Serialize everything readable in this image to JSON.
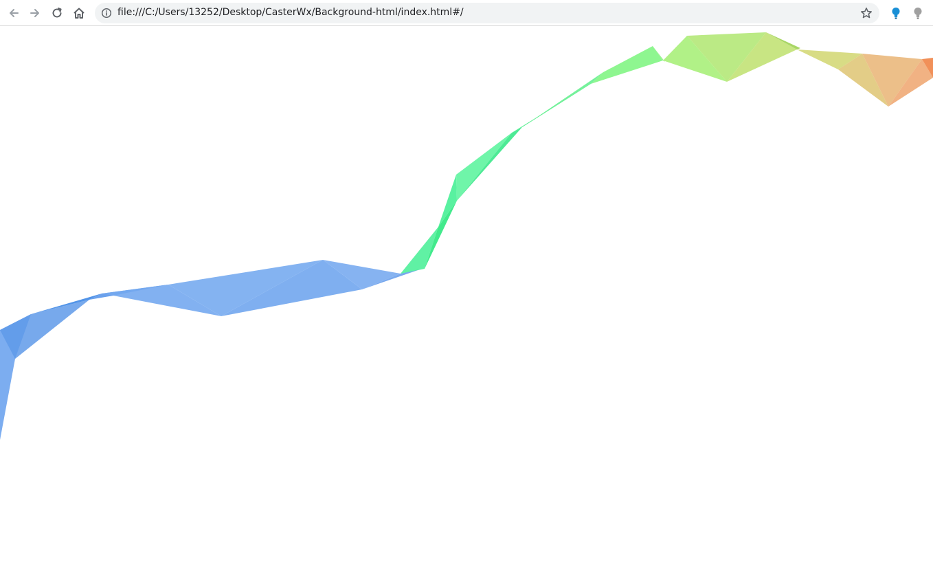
{
  "browser": {
    "url": "file:///C:/Users/13252/Desktop/CasterWx/Background-html/index.html#/",
    "icons": {
      "back": "arrow-left-icon",
      "forward": "arrow-right-icon",
      "reload": "reload-icon",
      "home": "home-icon",
      "info": "info-icon",
      "bookmark": "star-icon",
      "extension_1": "lightbulb-icon",
      "extension_2": "lightbulb-icon"
    },
    "colors": {
      "toolbar_icon": "#5f6368",
      "disabled_icon": "#9aa0a6",
      "extension_1": "#1a8fd6",
      "extension_2": "#a0a0a0"
    }
  },
  "background": {
    "description_colors": {
      "blue": "#6ea4ee",
      "blue_dark": "#3f88e6",
      "green": "#3cf08a",
      "light_green": "#8ff07a",
      "yellow_green": "#c9e276",
      "orange": "#eeb07c",
      "orange_deep": "#f08a50"
    }
  }
}
